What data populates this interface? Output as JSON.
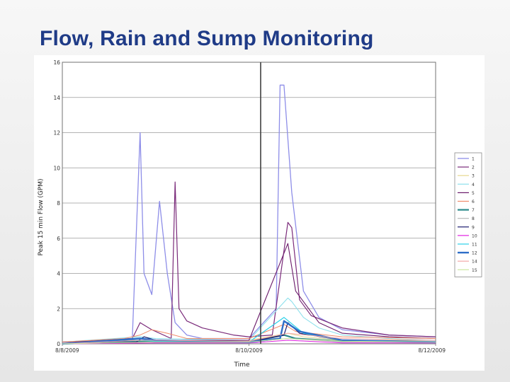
{
  "slide": {
    "title": "Flow, Rain and Sump Monitoring"
  },
  "chart_data": {
    "type": "line",
    "title": "",
    "xlabel": "Time",
    "ylabel": "Peak 15 min Flow (GPM)",
    "ylim": [
      0,
      16
    ],
    "yticks": [
      0,
      2,
      4,
      6,
      8,
      10,
      12,
      14,
      16
    ],
    "xlim": [
      "8/8/2009 00:00",
      "8/12/2009 00:00"
    ],
    "xticks": [
      "8/8/2009",
      "8/10/2009",
      "8/12/2009"
    ],
    "grid": true,
    "legend": "right",
    "vertical_marker": "8/10/2009 03:00",
    "series": [
      {
        "name": "1",
        "color": "#8e8ee8",
        "width": 1.3,
        "x": [
          "8/8/2009 00:00",
          "8/8/2009 18:00",
          "8/8/2009 20:00",
          "8/8/2009 21:00",
          "8/8/2009 23:00",
          "8/9/2009 01:00",
          "8/9/2009 03:00",
          "8/9/2009 05:00",
          "8/9/2009 08:00",
          "8/9/2009 12:00",
          "8/10/2009 00:00",
          "8/10/2009 07:00",
          "8/10/2009 08:00",
          "8/10/2009 09:00",
          "8/10/2009 11:00",
          "8/10/2009 14:00",
          "8/10/2009 18:00",
          "8/11/2009 00:00",
          "8/11/2009 12:00",
          "8/12/2009 00:00"
        ],
        "y": [
          0,
          0.3,
          12.0,
          4.0,
          2.8,
          8.1,
          4.0,
          1.2,
          0.5,
          0.3,
          0.3,
          2.0,
          14.7,
          14.7,
          8.6,
          3.0,
          1.5,
          0.8,
          0.5,
          0.4
        ]
      },
      {
        "name": "2",
        "color": "#7a2a7a",
        "width": 1.2,
        "x": [
          "8/8/2009 00:00",
          "8/8/2009 18:00",
          "8/8/2009 20:00",
          "8/8/2009 23:00",
          "8/9/2009 04:00",
          "8/9/2009 05:00",
          "8/9/2009 06:00",
          "8/9/2009 08:00",
          "8/9/2009 12:00",
          "8/9/2009 20:00",
          "8/10/2009 00:00",
          "8/10/2009 06:00",
          "8/10/2009 10:00",
          "8/10/2009 11:00",
          "8/10/2009 13:00",
          "8/10/2009 16:00",
          "8/11/2009 00:00",
          "8/11/2009 12:00",
          "8/12/2009 00:00"
        ],
        "y": [
          0.1,
          0.3,
          1.2,
          0.8,
          0.3,
          9.2,
          2.0,
          1.3,
          0.9,
          0.5,
          0.4,
          0.5,
          6.9,
          6.6,
          2.5,
          1.6,
          0.9,
          0.5,
          0.4
        ]
      },
      {
        "name": "3",
        "color": "#e6d890",
        "width": 1,
        "x": [
          "8/8/2009 00:00",
          "8/8/2009 20:00",
          "8/9/2009 00:00",
          "8/10/2009 00:00",
          "8/10/2009 10:00",
          "8/10/2009 14:00",
          "8/11/2009 00:00",
          "8/12/2009 00:00"
        ],
        "y": [
          0,
          0.2,
          0.2,
          0.2,
          0.6,
          0.4,
          0.2,
          0.2
        ]
      },
      {
        "name": "4",
        "color": "#8ee0ec",
        "width": 1.1,
        "x": [
          "8/8/2009 00:00",
          "8/8/2009 20:00",
          "8/9/2009 00:00",
          "8/10/2009 00:00",
          "8/10/2009 10:00",
          "8/10/2009 11:00",
          "8/10/2009 14:00",
          "8/10/2009 18:00",
          "8/11/2009 00:00",
          "8/11/2009 12:00",
          "8/12/2009 00:00"
        ],
        "y": [
          0.1,
          0.4,
          0.3,
          0.2,
          2.6,
          2.4,
          1.5,
          0.9,
          0.5,
          0.3,
          0.2
        ]
      },
      {
        "name": "5",
        "color": "#6a1a6a",
        "width": 1.1,
        "x": [
          "8/8/2009 00:00",
          "8/8/2009 20:00",
          "8/9/2009 00:00",
          "8/10/2009 00:00",
          "8/10/2009 10:00",
          "8/10/2009 12:00",
          "8/10/2009 18:00",
          "8/11/2009 00:00",
          "8/11/2009 12:00",
          "8/12/2009 00:00"
        ],
        "y": [
          0.1,
          0.2,
          0.2,
          0.2,
          5.7,
          3.0,
          1.2,
          0.6,
          0.4,
          0.3
        ]
      },
      {
        "name": "6",
        "color": "#f08a6a",
        "width": 1,
        "x": [
          "8/8/2009 00:00",
          "8/8/2009 16:00",
          "8/8/2009 20:00",
          "8/8/2009 23:00",
          "8/9/2009 03:00",
          "8/9/2009 08:00",
          "8/10/2009 00:00",
          "8/10/2009 09:00",
          "8/10/2009 12:00",
          "8/11/2009 00:00",
          "8/12/2009 00:00"
        ],
        "y": [
          0.1,
          0.3,
          0.5,
          0.8,
          0.6,
          0.3,
          0.3,
          1.1,
          0.7,
          0.4,
          0.3
        ]
      },
      {
        "name": "7",
        "color": "#2a8a8a",
        "width": 2.2,
        "x": [
          "8/8/2009 00:00",
          "8/8/2009 20:00",
          "8/9/2009 00:00",
          "8/10/2009 00:00",
          "8/10/2009 09:00",
          "8/10/2009 12:00",
          "8/11/2009 00:00",
          "8/12/2009 00:00"
        ],
        "y": [
          0,
          0.15,
          0.1,
          0.1,
          0.5,
          0.3,
          0.15,
          0.1
        ]
      },
      {
        "name": "8",
        "color": "#b8b8b8",
        "width": 1,
        "x": [
          "8/8/2009 00:00",
          "8/9/2009 00:00",
          "8/10/2009 00:00",
          "8/10/2009 10:00",
          "8/11/2009 00:00",
          "8/12/2009 00:00"
        ],
        "y": [
          0,
          0.1,
          0.1,
          0.3,
          0.1,
          0.1
        ]
      },
      {
        "name": "9",
        "color": "#1a1a6e",
        "width": 1.2,
        "x": [
          "8/8/2009 00:00",
          "8/8/2009 19:00",
          "8/8/2009 21:00",
          "8/9/2009 00:00",
          "8/10/2009 00:00",
          "8/10/2009 09:00",
          "8/10/2009 10:00",
          "8/10/2009 13:00",
          "8/11/2009 00:00",
          "8/12/2009 00:00"
        ],
        "y": [
          0,
          0.1,
          0.4,
          0.2,
          0.1,
          0.5,
          1.2,
          0.6,
          0.2,
          0.1
        ]
      },
      {
        "name": "10",
        "color": "#e020e0",
        "width": 1,
        "x": [
          "8/8/2009 00:00",
          "8/9/2009 00:00",
          "8/10/2009 00:00",
          "8/10/2009 10:00",
          "8/11/2009 00:00",
          "8/12/2009 00:00"
        ],
        "y": [
          0,
          0.05,
          0.05,
          0.2,
          0.05,
          0.05
        ]
      },
      {
        "name": "11",
        "color": "#2ad0e8",
        "width": 1.2,
        "x": [
          "8/8/2009 00:00",
          "8/8/2009 20:00",
          "8/9/2009 00:00",
          "8/10/2009 00:00",
          "8/10/2009 09:00",
          "8/10/2009 14:00",
          "8/11/2009 00:00",
          "8/12/2009 00:00"
        ],
        "y": [
          0,
          0.2,
          0.15,
          0.1,
          1.5,
          0.6,
          0.2,
          0.1
        ]
      },
      {
        "name": "12",
        "color": "#2e6ec8",
        "width": 2.4,
        "x": [
          "8/8/2009 00:00",
          "8/8/2009 20:00",
          "8/9/2009 00:00",
          "8/10/2009 00:00",
          "8/10/2009 08:00",
          "8/10/2009 09:00",
          "8/10/2009 13:00",
          "8/11/2009 00:00",
          "8/12/2009 00:00"
        ],
        "y": [
          0,
          0.3,
          0.2,
          0.1,
          0.3,
          1.3,
          0.7,
          0.2,
          0.1
        ]
      },
      {
        "name": "14",
        "color": "#f4a8a8",
        "width": 1,
        "x": [
          "8/8/2009 00:00",
          "8/8/2009 20:00",
          "8/9/2009 00:00",
          "8/10/2009 00:00",
          "8/10/2009 10:00",
          "8/11/2009 00:00",
          "8/12/2009 00:00"
        ],
        "y": [
          0,
          0.2,
          0.2,
          0.15,
          0.6,
          0.3,
          0.2
        ]
      },
      {
        "name": "15",
        "color": "#cce8a0",
        "width": 1,
        "x": [
          "8/8/2009 00:00",
          "8/9/2009 00:00",
          "8/10/2009 00:00",
          "8/10/2009 10:00",
          "8/11/2009 00:00",
          "8/12/2009 00:00"
        ],
        "y": [
          0,
          0.1,
          0.1,
          0.3,
          0.15,
          0.1
        ]
      }
    ]
  }
}
